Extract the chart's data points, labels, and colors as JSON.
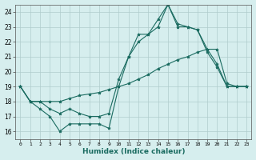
{
  "title": "",
  "xlabel": "Humidex (Indice chaleur)",
  "xlim": [
    -0.5,
    23.5
  ],
  "ylim": [
    15.5,
    24.5
  ],
  "yticks": [
    16,
    17,
    18,
    19,
    20,
    21,
    22,
    23,
    24
  ],
  "xticks": [
    0,
    1,
    2,
    3,
    4,
    5,
    6,
    7,
    8,
    9,
    10,
    11,
    12,
    13,
    14,
    15,
    16,
    17,
    18,
    19,
    20,
    21,
    22,
    23
  ],
  "background_color": "#d6eeee",
  "plot_bg_color": "#d6eeee",
  "grid_color": "#b0cccc",
  "line_color": "#1a6b60",
  "series": {
    "line_zigzag": [
      19.0,
      18.0,
      17.5,
      17.0,
      16.0,
      16.5,
      16.5,
      16.5,
      16.5,
      16.2,
      19.0,
      21.0,
      22.5,
      22.5,
      23.5,
      24.5,
      23.0,
      23.0,
      22.8,
      21.3,
      20.3,
      19.0,
      19.0,
      19.0
    ],
    "line_steep": [
      19.0,
      18.0,
      18.0,
      17.5,
      17.2,
      17.5,
      17.2,
      17.0,
      17.0,
      17.2,
      19.5,
      21.0,
      22.0,
      22.5,
      23.0,
      24.5,
      23.2,
      23.0,
      22.8,
      21.5,
      20.5,
      19.0,
      19.0,
      19.0
    ],
    "line_gradual": [
      19.0,
      18.0,
      18.0,
      18.0,
      18.0,
      18.2,
      18.4,
      18.5,
      18.6,
      18.8,
      19.0,
      19.2,
      19.5,
      19.8,
      20.2,
      20.5,
      20.8,
      21.0,
      21.3,
      21.5,
      21.5,
      19.2,
      19.0,
      19.0
    ]
  }
}
